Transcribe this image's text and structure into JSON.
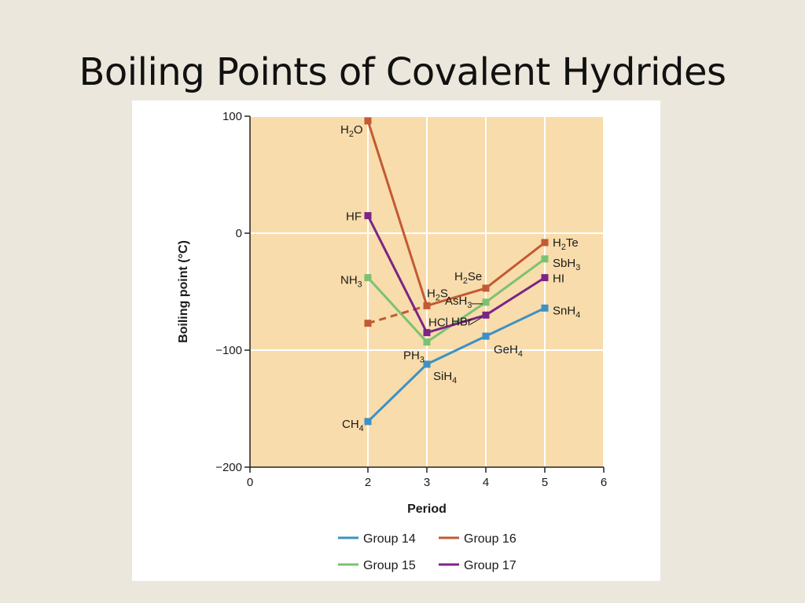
{
  "slide": {
    "title": "Boiling Points of Covalent Hydrides"
  },
  "chart_data": {
    "type": "line",
    "xlabel": "Period",
    "ylabel": "Boiling point (°C)",
    "xlim": [
      0,
      6
    ],
    "ylim": [
      -200,
      100
    ],
    "xticks": [
      0,
      2,
      3,
      4,
      5,
      6
    ],
    "yticks": [
      100,
      0,
      -100,
      -200
    ],
    "ytick_labels": [
      "100",
      "0",
      "−100",
      "−200"
    ],
    "grid": true,
    "legend": "bottom",
    "plot_background": "#f8dcab",
    "series": [
      {
        "name": "Group 14",
        "color": "#3d91c4",
        "x": [
          2,
          3,
          4,
          5
        ],
        "y": [
          -161,
          -112,
          -88,
          -64
        ],
        "labels": [
          [
            "CH",
            "4",
            ""
          ],
          [
            "SiH",
            "4",
            ""
          ],
          [
            "GeH",
            "4",
            ""
          ],
          [
            "SnH",
            "4",
            ""
          ]
        ]
      },
      {
        "name": "Group 15",
        "color": "#7ac272",
        "x": [
          2,
          3,
          4,
          5
        ],
        "y": [
          -38,
          -93,
          -59,
          -22
        ],
        "labels": [
          [
            "NH",
            "3",
            ""
          ],
          [
            "PH",
            "3",
            ""
          ],
          [
            "AsH",
            "3",
            ""
          ],
          [
            "SbH",
            "3",
            ""
          ]
        ]
      },
      {
        "name": "Group 16",
        "color": "#c25a33",
        "x": [
          2,
          3,
          4,
          5
        ],
        "y": [
          96,
          -62,
          -47,
          -8
        ],
        "labels": [
          [
            "H",
            "2",
            "O"
          ],
          [
            "H",
            "2",
            "S"
          ],
          [
            "H",
            "2",
            "Se"
          ],
          [
            "H",
            "2",
            "Te"
          ]
        ],
        "dashed_segment": {
          "x": [
            2,
            3
          ],
          "y": [
            -77,
            -62
          ]
        }
      },
      {
        "name": "Group 17",
        "color": "#7b2486",
        "x": [
          2,
          3,
          4,
          5
        ],
        "y": [
          15,
          -85,
          -70,
          -38
        ],
        "labels": [
          [
            "HF",
            "",
            ""
          ],
          [
            "HCl",
            "",
            ""
          ],
          [
            "HBr",
            "",
            ""
          ],
          [
            "HI",
            "",
            ""
          ]
        ]
      }
    ]
  }
}
